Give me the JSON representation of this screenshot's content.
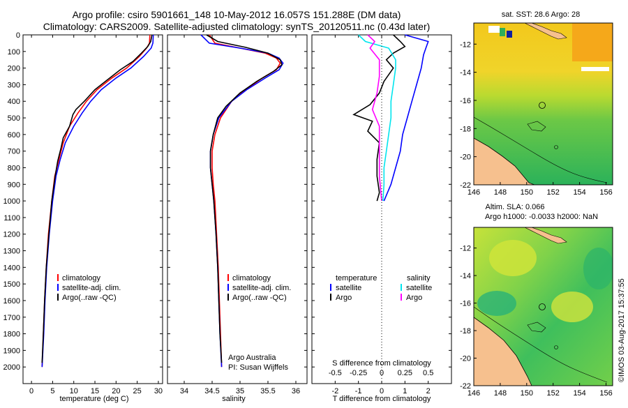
{
  "header": {
    "title_line1": "Argo profile: csiro 5901661_148 10-May-2012 16.057S 151.288E (DM data)",
    "title_line2": "Climatology: CARS2009. Satellite-adjusted climatology: synTS_20120511.nc (0.43d later)"
  },
  "colors": {
    "climatology": "#ff0000",
    "satellite": "#0000ff",
    "argo": "#000000",
    "sat_salinity": "#00e5ee",
    "argo_salinity": "#ff00ff",
    "land": "#f6c08e"
  },
  "chart_data": [
    {
      "type": "line",
      "name": "temperature-profile",
      "xlabel": "temperature (deg C)",
      "ylabel": "",
      "xlim": [
        -2,
        31
      ],
      "ylim": [
        2100,
        0
      ],
      "x_ticks": [
        "0",
        "5",
        "10",
        "15",
        "20",
        "25",
        "30"
      ],
      "y_ticks": [
        "0",
        "100",
        "200",
        "300",
        "400",
        "500",
        "600",
        "700",
        "800",
        "900",
        "1000",
        "1100",
        "1200",
        "1300",
        "1400",
        "1500",
        "1600",
        "1700",
        "1800",
        "1900",
        "2000"
      ],
      "legend": [
        "climatology",
        "satellite-adj. clim.",
        "Argo(..raw -QC)"
      ],
      "series": [
        {
          "name": "climatology",
          "color_key": "climatology",
          "points": [
            [
              28.0,
              0
            ],
            [
              27.9,
              50
            ],
            [
              27.2,
              80
            ],
            [
              25.5,
              130
            ],
            [
              22.5,
              200
            ],
            [
              19.0,
              260
            ],
            [
              15.5,
              330
            ],
            [
              13.0,
              400
            ],
            [
              11.0,
              470
            ],
            [
              9.0,
              550
            ],
            [
              7.5,
              650
            ],
            [
              6.5,
              750
            ],
            [
              5.5,
              850
            ],
            [
              4.8,
              1000
            ],
            [
              4.0,
              1200
            ],
            [
              3.5,
              1400
            ],
            [
              3.1,
              1600
            ],
            [
              2.8,
              1800
            ],
            [
              2.5,
              2000
            ]
          ]
        },
        {
          "name": "satellite-adj. clim.",
          "color_key": "satellite",
          "points": [
            [
              28.8,
              0
            ],
            [
              28.7,
              50
            ],
            [
              28.3,
              80
            ],
            [
              26.5,
              130
            ],
            [
              23.5,
              200
            ],
            [
              20.0,
              260
            ],
            [
              16.5,
              330
            ],
            [
              14.0,
              400
            ],
            [
              12.0,
              470
            ],
            [
              10.0,
              550
            ],
            [
              8.0,
              650
            ],
            [
              6.8,
              750
            ],
            [
              5.8,
              850
            ],
            [
              5.0,
              1000
            ],
            [
              4.2,
              1200
            ],
            [
              3.6,
              1400
            ],
            [
              3.2,
              1600
            ],
            [
              2.9,
              1800
            ],
            [
              2.5,
              2000
            ]
          ]
        },
        {
          "name": "Argo(..raw -QC)",
          "color_key": "argo",
          "points": [
            [
              28.5,
              0
            ],
            [
              28.2,
              40
            ],
            [
              27.5,
              70
            ],
            [
              26.0,
              110
            ],
            [
              24.0,
              160
            ],
            [
              21.0,
              210
            ],
            [
              18.0,
              270
            ],
            [
              15.0,
              330
            ],
            [
              12.5,
              400
            ],
            [
              10.5,
              450
            ],
            [
              9.8,
              480
            ],
            [
              9.0,
              550
            ],
            [
              7.5,
              620
            ],
            [
              7.0,
              680
            ],
            [
              6.2,
              760
            ],
            [
              5.6,
              850
            ],
            [
              4.8,
              1000
            ],
            [
              4.1,
              1200
            ],
            [
              3.5,
              1400
            ],
            [
              3.1,
              1600
            ],
            [
              2.8,
              1800
            ],
            [
              2.5,
              1975
            ]
          ]
        }
      ]
    },
    {
      "type": "line",
      "name": "salinity-profile",
      "xlabel": "salinity",
      "xlim": [
        33.7,
        36.2
      ],
      "ylim": [
        2100,
        0
      ],
      "x_ticks": [
        "34",
        "34.5",
        "35",
        "35.5",
        "36"
      ],
      "legend": [
        "climatology",
        "satellite-adj. clim.",
        "Argo(..raw -QC)"
      ],
      "annotation": [
        "Argo Australia",
        "PI: Susan Wijffels"
      ],
      "series": [
        {
          "name": "climatology",
          "color_key": "climatology",
          "points": [
            [
              34.45,
              0
            ],
            [
              34.55,
              50
            ],
            [
              35.0,
              80
            ],
            [
              35.45,
              110
            ],
            [
              35.65,
              140
            ],
            [
              35.72,
              170
            ],
            [
              35.65,
              210
            ],
            [
              35.4,
              260
            ],
            [
              35.1,
              330
            ],
            [
              34.85,
              400
            ],
            [
              34.65,
              500
            ],
            [
              34.55,
              600
            ],
            [
              34.5,
              700
            ],
            [
              34.5,
              800
            ],
            [
              34.52,
              900
            ],
            [
              34.55,
              1000
            ],
            [
              34.58,
              1200
            ],
            [
              34.61,
              1400
            ],
            [
              34.63,
              1600
            ],
            [
              34.65,
              1800
            ],
            [
              34.67,
              2000
            ]
          ]
        },
        {
          "name": "satellite-adj. clim.",
          "color_key": "satellite",
          "points": [
            [
              34.3,
              0
            ],
            [
              34.45,
              50
            ],
            [
              35.0,
              80
            ],
            [
              35.5,
              110
            ],
            [
              35.7,
              140
            ],
            [
              35.77,
              170
            ],
            [
              35.7,
              210
            ],
            [
              35.45,
              260
            ],
            [
              35.12,
              330
            ],
            [
              34.85,
              400
            ],
            [
              34.62,
              500
            ],
            [
              34.52,
              600
            ],
            [
              34.47,
              700
            ],
            [
              34.47,
              800
            ],
            [
              34.5,
              900
            ],
            [
              34.53,
              1000
            ],
            [
              34.57,
              1200
            ],
            [
              34.6,
              1400
            ],
            [
              34.62,
              1600
            ],
            [
              34.64,
              1800
            ],
            [
              34.67,
              2000
            ]
          ]
        },
        {
          "name": "Argo(..raw -QC)",
          "color_key": "argo",
          "points": [
            [
              34.4,
              0
            ],
            [
              34.6,
              40
            ],
            [
              35.1,
              75
            ],
            [
              35.5,
              110
            ],
            [
              35.72,
              150
            ],
            [
              35.75,
              180
            ],
            [
              35.6,
              220
            ],
            [
              35.3,
              280
            ],
            [
              35.0,
              350
            ],
            [
              34.75,
              430
            ],
            [
              34.6,
              500
            ],
            [
              34.52,
              600
            ],
            [
              34.47,
              700
            ],
            [
              34.47,
              800
            ],
            [
              34.5,
              900
            ],
            [
              34.53,
              1000
            ],
            [
              34.57,
              1200
            ],
            [
              34.6,
              1400
            ],
            [
              34.62,
              1600
            ],
            [
              34.64,
              1800
            ],
            [
              34.67,
              1975
            ]
          ]
        }
      ]
    },
    {
      "type": "line",
      "name": "difference-profile",
      "xlabel": "T difference from climatology",
      "xlabel_top": "S difference from climatology",
      "xlim": [
        -3,
        3
      ],
      "ylim": [
        2100,
        0
      ],
      "x_ticks": [
        -2,
        -1,
        0,
        1,
        2
      ],
      "x_tick_labels": [
        "-2",
        "-1",
        "0",
        "1",
        "2"
      ],
      "s_ticks": [
        -2,
        -1,
        0,
        1,
        2
      ],
      "s_tick_labels": [
        "-0.5",
        "-0.25",
        "0",
        "0.25",
        "0.5"
      ],
      "legend_left_title": "temperature",
      "legend_right_title": "salinity",
      "legend_left": [
        "satellite",
        "Argo"
      ],
      "legend_right": [
        "satellite",
        "Argo"
      ],
      "series": [
        {
          "name": "temperature satellite",
          "color_key": "satellite",
          "points": [
            [
              1.0,
              0
            ],
            [
              2.0,
              40
            ],
            [
              1.9,
              80
            ],
            [
              1.8,
              120
            ],
            [
              1.7,
              200
            ],
            [
              1.5,
              300
            ],
            [
              1.3,
              400
            ],
            [
              1.1,
              500
            ],
            [
              0.9,
              600
            ],
            [
              0.8,
              700
            ],
            [
              0.6,
              800
            ],
            [
              0.4,
              900
            ],
            [
              0.1,
              1000
            ]
          ]
        },
        {
          "name": "temperature Argo",
          "color_key": "argo",
          "points": [
            [
              0.5,
              0
            ],
            [
              0.8,
              40
            ],
            [
              1.0,
              70
            ],
            [
              0.5,
              110
            ],
            [
              0.2,
              150
            ],
            [
              0.5,
              200
            ],
            [
              0.1,
              280
            ],
            [
              -0.1,
              350
            ],
            [
              -0.5,
              420
            ],
            [
              -1.2,
              480
            ],
            [
              -0.4,
              520
            ],
            [
              -0.6,
              580
            ],
            [
              -0.1,
              650
            ],
            [
              -0.2,
              750
            ],
            [
              -0.2,
              850
            ],
            [
              -0.1,
              950
            ],
            [
              -0.2,
              1000
            ]
          ]
        },
        {
          "name": "salinity satellite",
          "color_key": "sat_salinity",
          "points": [
            [
              -1.0,
              0
            ],
            [
              -0.7,
              40
            ],
            [
              0.3,
              80
            ],
            [
              0.6,
              150
            ],
            [
              0.6,
              200
            ],
            [
              0.5,
              300
            ],
            [
              0.4,
              400
            ],
            [
              0.4,
              500
            ],
            [
              0.3,
              600
            ],
            [
              0.2,
              700
            ],
            [
              0.1,
              800
            ],
            [
              0.1,
              900
            ],
            [
              0.05,
              1000
            ]
          ]
        },
        {
          "name": "salinity Argo",
          "color_key": "argo_salinity",
          "points": [
            [
              -0.6,
              0
            ],
            [
              -0.3,
              40
            ],
            [
              -0.5,
              80
            ],
            [
              -0.1,
              150
            ],
            [
              -0.1,
              250
            ],
            [
              -0.2,
              350
            ],
            [
              -0.4,
              450
            ],
            [
              -0.1,
              550
            ],
            [
              -0.1,
              650
            ],
            [
              -0.1,
              750
            ],
            [
              -0.1,
              850
            ],
            [
              0.0,
              1000
            ]
          ]
        }
      ]
    },
    {
      "type": "heatmap",
      "name": "sst-map",
      "title": "sat. SST: 28.6 Argo: 28",
      "x_ticks": [
        "146",
        "148",
        "150",
        "152",
        "154",
        "156"
      ],
      "y_ticks": [
        "-12",
        "-14",
        "-16",
        "-18",
        "-20",
        "-22"
      ],
      "xlim": [
        146,
        156.5
      ],
      "ylim": [
        -22,
        -10.5
      ],
      "argo_position": [
        151.3,
        -16.06
      ]
    },
    {
      "type": "heatmap",
      "name": "sla-map",
      "title_line1": "Altim. SLA: 0.066",
      "title_line2": "Argo h1000: -0.0033 h2000: NaN",
      "x_ticks": [
        "146",
        "148",
        "150",
        "152",
        "154",
        "156"
      ],
      "y_ticks": [
        "-12",
        "-14",
        "-16",
        "-18",
        "-20",
        "-22"
      ],
      "xlim": [
        146,
        156.5
      ],
      "ylim": [
        -22,
        -10.5
      ],
      "argo_position": [
        151.3,
        -16.06
      ]
    }
  ],
  "footer": {
    "credit": "©IMOS 03-Aug-2017 15:37:55"
  }
}
